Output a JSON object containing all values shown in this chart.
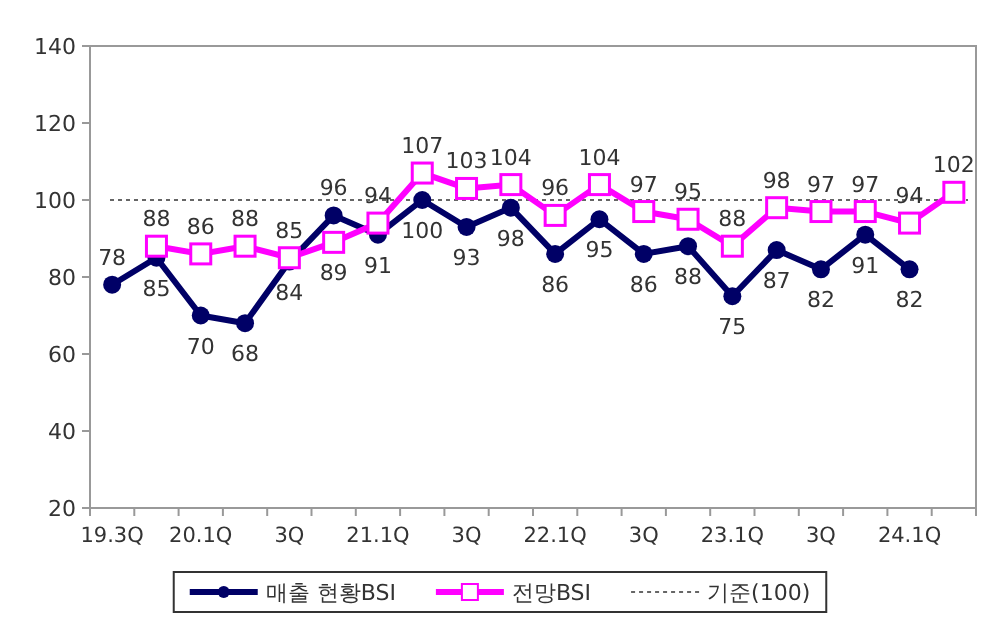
{
  "chart_data": {
    "type": "line",
    "categories": [
      "19.3Q",
      null,
      "20.1Q",
      null,
      "3Q",
      null,
      "21.1Q",
      null,
      "3Q",
      null,
      "22.1Q",
      null,
      "3Q",
      null,
      "23.1Q",
      null,
      "3Q",
      null,
      "24.1Q",
      null
    ],
    "series": [
      {
        "name": "매출 현황BSI",
        "color": "#000066",
        "marker": "circle",
        "values": [
          78,
          85,
          70,
          68,
          84,
          96,
          91,
          100,
          93,
          98,
          86,
          95,
          86,
          88,
          75,
          87,
          82,
          91,
          82,
          null
        ]
      },
      {
        "name": "전망BSI",
        "color": "#ff00ff",
        "marker": "square",
        "values": [
          null,
          88,
          86,
          88,
          85,
          89,
          94,
          107,
          103,
          104,
          96,
          104,
          97,
          95,
          88,
          98,
          97,
          97,
          94,
          102
        ]
      }
    ],
    "ref_lines": [
      {
        "axis": "y",
        "value": 100,
        "label": "기준(100)",
        "color": "#666666",
        "line_style": "dotted"
      }
    ],
    "ylim": [
      20,
      140
    ],
    "yticks": [
      20,
      40,
      60,
      80,
      100,
      120,
      140
    ],
    "data_labels": true,
    "grid": false,
    "legend": "bottom",
    "line_style": "solid"
  }
}
